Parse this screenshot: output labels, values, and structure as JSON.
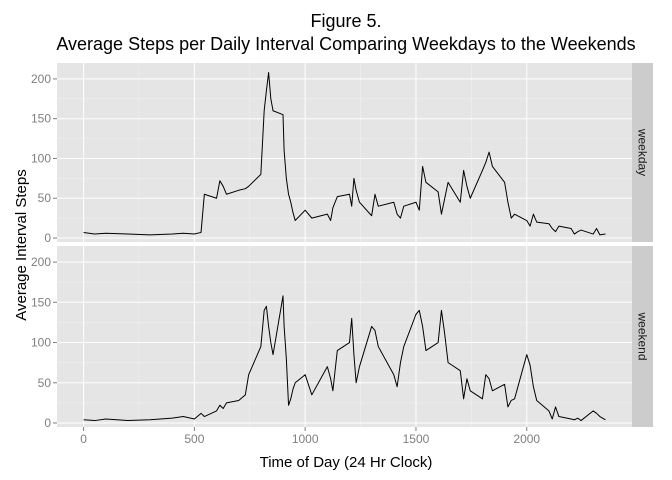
{
  "chart_data": {
    "type": "line",
    "title_line1": "Figure 5.",
    "title_line2": "Average Steps per Daily Interval Comparing Weekdays to the Weekends",
    "xlabel": "Time of Day (24 Hr Clock)",
    "ylabel": "Average Interval Steps",
    "xlim": [
      -120,
      2475
    ],
    "ylim": [
      -5,
      220
    ],
    "x_ticks": [
      0,
      500,
      1000,
      1500,
      2000
    ],
    "y_ticks": [
      0,
      50,
      100,
      150,
      200
    ],
    "grid": true,
    "panel_bg": "#e5e5e5",
    "strip_bg": "#cccccc",
    "line_color": "#000000",
    "panels": [
      {
        "name": "weekday",
        "x": [
          0,
          50,
          100,
          200,
          300,
          400,
          450,
          500,
          530,
          545,
          600,
          615,
          630,
          645,
          700,
          730,
          745,
          800,
          815,
          825,
          835,
          845,
          855,
          900,
          905,
          915,
          925,
          935,
          945,
          955,
          1000,
          1030,
          1100,
          1115,
          1125,
          1145,
          1200,
          1210,
          1220,
          1230,
          1245,
          1300,
          1315,
          1330,
          1400,
          1415,
          1430,
          1445,
          1500,
          1515,
          1530,
          1545,
          1600,
          1615,
          1630,
          1645,
          1700,
          1715,
          1730,
          1745,
          1800,
          1815,
          1830,
          1845,
          1900,
          1915,
          1930,
          1945,
          2000,
          2015,
          2030,
          2045,
          2100,
          2115,
          2130,
          2145,
          2200,
          2215,
          2230,
          2245,
          2300,
          2315,
          2330,
          2355
        ],
        "y": [
          7,
          5,
          6,
          5,
          4,
          5,
          6,
          5,
          7,
          55,
          50,
          72,
          65,
          55,
          60,
          62,
          65,
          80,
          160,
          185,
          208,
          175,
          160,
          155,
          110,
          75,
          55,
          45,
          32,
          22,
          35,
          25,
          30,
          22,
          38,
          52,
          55,
          40,
          75,
          60,
          45,
          28,
          55,
          40,
          45,
          30,
          25,
          40,
          45,
          35,
          90,
          70,
          58,
          30,
          50,
          70,
          45,
          85,
          65,
          50,
          85,
          95,
          108,
          90,
          70,
          45,
          25,
          30,
          22,
          15,
          30,
          20,
          18,
          12,
          8,
          15,
          12,
          5,
          8,
          10,
          5,
          12,
          4,
          5
        ]
      },
      {
        "name": "weekend",
        "x": [
          0,
          50,
          100,
          200,
          300,
          400,
          450,
          500,
          530,
          545,
          600,
          615,
          630,
          645,
          700,
          730,
          745,
          800,
          815,
          825,
          835,
          845,
          855,
          900,
          905,
          915,
          925,
          935,
          945,
          955,
          1000,
          1030,
          1100,
          1115,
          1125,
          1145,
          1200,
          1210,
          1220,
          1230,
          1245,
          1300,
          1315,
          1330,
          1400,
          1415,
          1430,
          1445,
          1500,
          1515,
          1530,
          1545,
          1600,
          1615,
          1630,
          1645,
          1700,
          1715,
          1730,
          1745,
          1800,
          1815,
          1830,
          1845,
          1900,
          1915,
          1930,
          1945,
          2000,
          2015,
          2030,
          2045,
          2100,
          2115,
          2130,
          2145,
          2200,
          2215,
          2230,
          2245,
          2300,
          2315,
          2330,
          2355
        ],
        "y": [
          4,
          3,
          5,
          3,
          4,
          6,
          8,
          5,
          12,
          8,
          15,
          22,
          18,
          25,
          28,
          35,
          60,
          95,
          140,
          145,
          120,
          100,
          85,
          158,
          120,
          80,
          22,
          30,
          42,
          50,
          60,
          35,
          70,
          55,
          40,
          90,
          100,
          130,
          85,
          50,
          70,
          120,
          115,
          95,
          60,
          45,
          75,
          95,
          135,
          140,
          120,
          90,
          100,
          140,
          110,
          75,
          65,
          30,
          55,
          40,
          30,
          60,
          55,
          40,
          48,
          20,
          28,
          30,
          85,
          72,
          45,
          28,
          15,
          5,
          20,
          8,
          5,
          4,
          6,
          3,
          15,
          12,
          8,
          4
        ]
      }
    ]
  }
}
